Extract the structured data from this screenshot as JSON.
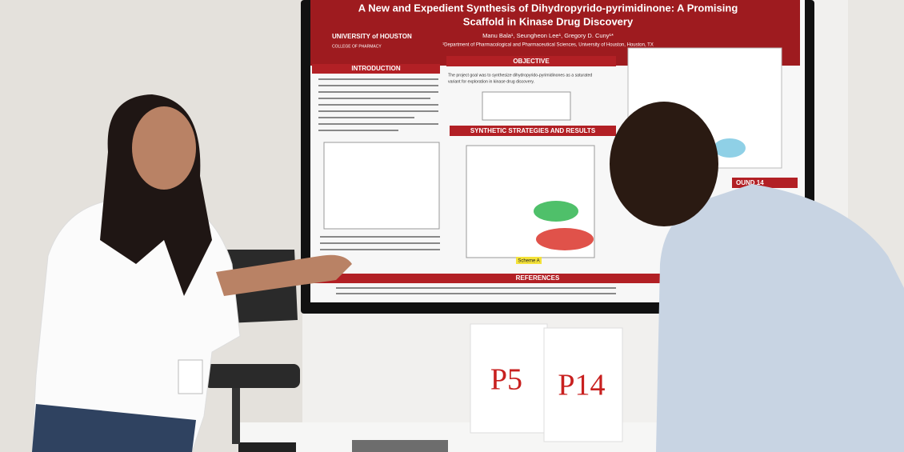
{
  "poster": {
    "university": "UNIVERSITY of HOUSTON",
    "college": "COLLEGE OF PHARMACY",
    "title_lines": [
      "A New and Expedient Synthesis of Dihydropyrido-pyrimidinone: A Promising",
      "Scaffold in Kinase Drug Discovery"
    ],
    "authors": "Manu Bala¹, Seungheon Lee¹, Gregory D. Cuny¹*",
    "affiliation": "¹Department of Pharmacological and Pharmaceutical Sciences, University of Houston, Houston, TX",
    "sections": {
      "introduction": "INTRODUCTION",
      "objective": "OBJECTIVE",
      "objective_text_lines": [
        "The project goal was to synthesize dihydropyrido-pyrimidinones as a saturated",
        "variant for exploration in kinase drug discovery."
      ],
      "synthetic": "SYNTHETIC STRATEGIES AND RESULTS",
      "references": "REFERENCES",
      "compound": "OUND 14",
      "scheme": "Scheme A"
    }
  },
  "signs": [
    "P5",
    "P14"
  ]
}
